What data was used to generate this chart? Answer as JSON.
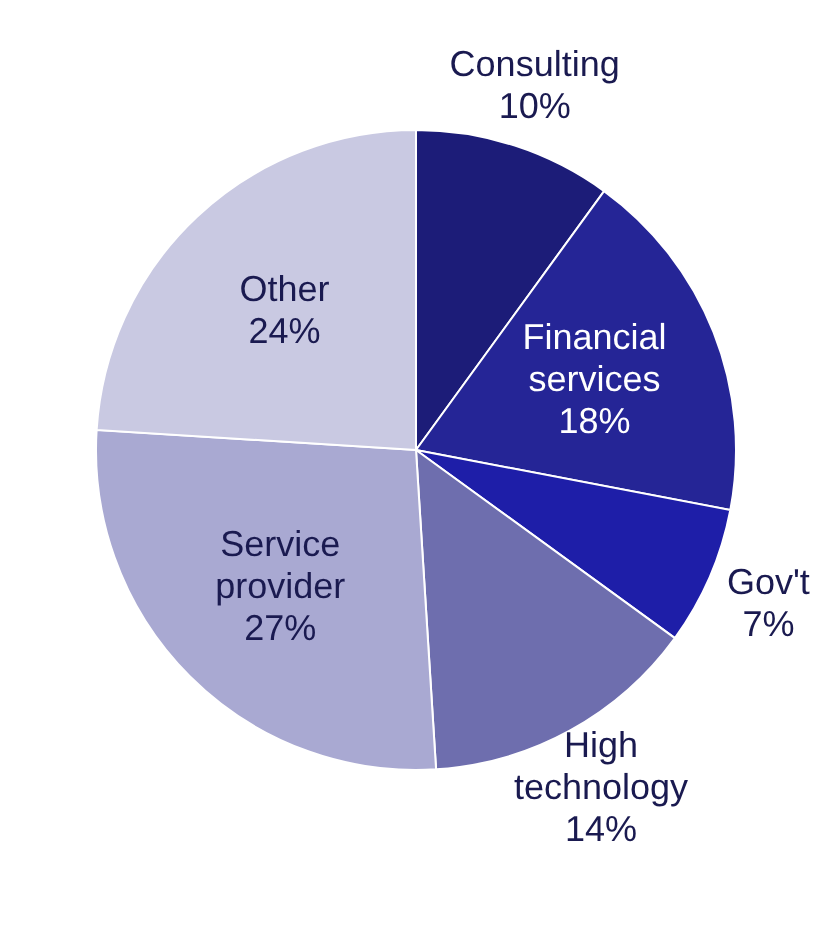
{
  "chart_data": {
    "type": "pie",
    "categories": [
      "Consulting",
      "Financial services",
      "Gov't",
      "High technology",
      "Service provider",
      "Other"
    ],
    "values": [
      10,
      18,
      7,
      14,
      27,
      24
    ],
    "value_labels": [
      "10%",
      "18%",
      "7%",
      "14%",
      "27%",
      "24%"
    ],
    "colors": [
      "#1c1c78",
      "#252596",
      "#1e1ea8",
      "#6e6eae",
      "#a9a9d2",
      "#c9c9e2"
    ],
    "legend": false
  }
}
